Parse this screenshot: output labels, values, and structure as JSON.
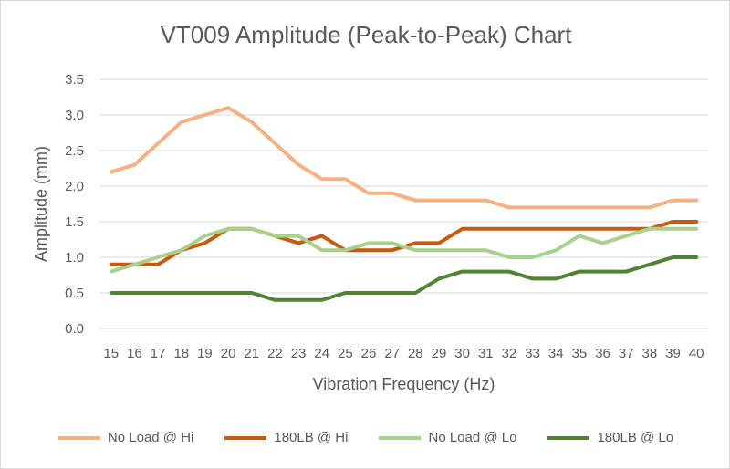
{
  "chart_data": {
    "type": "line",
    "title": "VT009 Amplitude (Peak-to-Peak) Chart",
    "xlabel": "Vibration Frequency (Hz)",
    "ylabel": "Amplitude (mm)",
    "ylim": [
      0,
      3.5
    ],
    "yticks": [
      "0.0",
      "0.5",
      "1.0",
      "1.5",
      "2.0",
      "2.5",
      "3.0",
      "3.5"
    ],
    "grid": true,
    "legend_position": "bottom",
    "categories": [
      "15",
      "16",
      "17",
      "18",
      "19",
      "20",
      "21",
      "22",
      "23",
      "24",
      "25",
      "26",
      "27",
      "28",
      "29",
      "30",
      "31",
      "32",
      "33",
      "34",
      "35",
      "36",
      "37",
      "38",
      "39",
      "40"
    ],
    "series": [
      {
        "name": "No Load @ Hi",
        "color": "#f4b183",
        "values": [
          2.2,
          2.3,
          2.6,
          2.9,
          3.0,
          3.1,
          2.9,
          2.6,
          2.3,
          2.1,
          2.1,
          1.9,
          1.9,
          1.8,
          1.8,
          1.8,
          1.8,
          1.7,
          1.7,
          1.7,
          1.7,
          1.7,
          1.7,
          1.7,
          1.8,
          1.8
        ]
      },
      {
        "name": "180LB @ Hi",
        "color": "#c55a11",
        "values": [
          0.9,
          0.9,
          0.9,
          1.1,
          1.2,
          1.4,
          1.4,
          1.3,
          1.2,
          1.3,
          1.1,
          1.1,
          1.1,
          1.2,
          1.2,
          1.4,
          1.4,
          1.4,
          1.4,
          1.4,
          1.4,
          1.4,
          1.4,
          1.4,
          1.5,
          1.5
        ]
      },
      {
        "name": "No Load @ Lo",
        "color": "#a9d18e",
        "values": [
          0.8,
          0.9,
          1.0,
          1.1,
          1.3,
          1.4,
          1.4,
          1.3,
          1.3,
          1.1,
          1.1,
          1.2,
          1.2,
          1.1,
          1.1,
          1.1,
          1.1,
          1.0,
          1.0,
          1.1,
          1.3,
          1.2,
          1.3,
          1.4,
          1.4,
          1.4
        ]
      },
      {
        "name": "180LB @ Lo",
        "color": "#548235",
        "values": [
          0.5,
          0.5,
          0.5,
          0.5,
          0.5,
          0.5,
          0.5,
          0.4,
          0.4,
          0.4,
          0.5,
          0.5,
          0.5,
          0.5,
          0.7,
          0.8,
          0.8,
          0.8,
          0.7,
          0.7,
          0.8,
          0.8,
          0.8,
          0.9,
          1.0,
          1.0
        ]
      }
    ]
  }
}
